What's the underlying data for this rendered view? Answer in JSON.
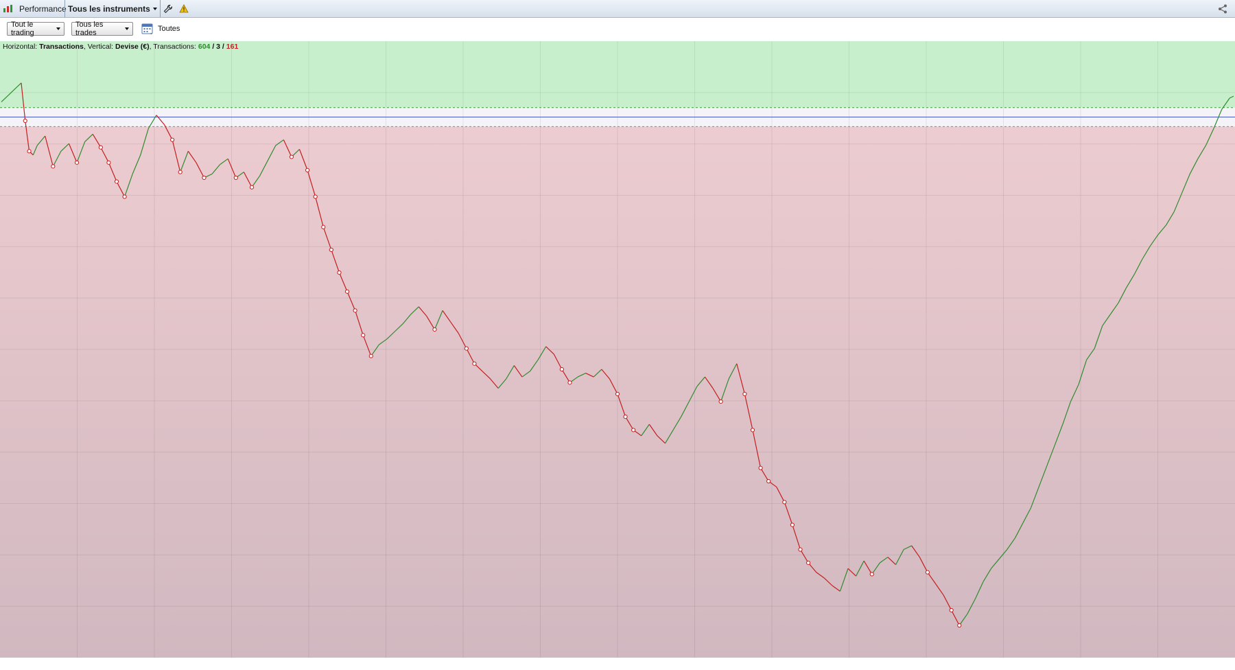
{
  "toolbar": {
    "app_label": "Performance",
    "instrument_label": "Tous les instruments",
    "icons": [
      "chart-logo-icon",
      "wrench-icon",
      "warning-icon",
      "share-icon"
    ]
  },
  "filters": {
    "trading_label": "Tout le trading",
    "trades_label": "Tous les trades",
    "period_label": "Toutes"
  },
  "info": {
    "horizontal_key": "Horizontal:",
    "horizontal_value": "Transactions",
    "vertical_key": "Vertical:",
    "vertical_value": "Devise (€)",
    "transactions_key": "Transactions:",
    "wins": "604",
    "separator": "/",
    "neutral": "3",
    "losses": "161"
  },
  "colors": {
    "profit_zone": "#c8efcc",
    "loss_zone_top": "#ecccd0",
    "loss_zone_bottom": "#d1b8c0",
    "rising_line": "#2e8b2e",
    "falling_line": "#c41e1e",
    "baseline": "#4a57c8"
  },
  "chart_data": {
    "type": "line",
    "x_quantity": "Transactions",
    "y_quantity": "Devise (€)",
    "series": [
      {
        "points": [
          [
            0,
            8
          ],
          [
            3,
            11
          ],
          [
            6,
            14
          ],
          [
            8,
            16
          ],
          [
            10,
            18
          ],
          [
            12,
            -2
          ],
          [
            14,
            -18
          ],
          [
            16,
            -20
          ],
          [
            18,
            -15
          ],
          [
            22,
            -10
          ],
          [
            26,
            -26
          ],
          [
            30,
            -18
          ],
          [
            34,
            -14
          ],
          [
            38,
            -24
          ],
          [
            42,
            -13
          ],
          [
            46,
            -9
          ],
          [
            50,
            -16
          ],
          [
            54,
            -24
          ],
          [
            58,
            -34
          ],
          [
            62,
            -42
          ],
          [
            66,
            -30
          ],
          [
            70,
            -20
          ],
          [
            74,
            -6
          ],
          [
            78,
            1
          ],
          [
            82,
            -4
          ],
          [
            86,
            -12
          ],
          [
            90,
            -29
          ],
          [
            94,
            -18
          ],
          [
            98,
            -24
          ],
          [
            102,
            -32
          ],
          [
            106,
            -30
          ],
          [
            110,
            -25
          ],
          [
            114,
            -22
          ],
          [
            118,
            -32
          ],
          [
            122,
            -29
          ],
          [
            126,
            -37
          ],
          [
            130,
            -31
          ],
          [
            134,
            -23
          ],
          [
            138,
            -15
          ],
          [
            142,
            -12
          ],
          [
            146,
            -21
          ],
          [
            150,
            -17
          ],
          [
            154,
            -28
          ],
          [
            158,
            -42
          ],
          [
            162,
            -58
          ],
          [
            166,
            -70
          ],
          [
            170,
            -82
          ],
          [
            174,
            -92
          ],
          [
            178,
            -102
          ],
          [
            182,
            -115
          ],
          [
            186,
            -126
          ],
          [
            190,
            -120
          ],
          [
            194,
            -117
          ],
          [
            198,
            -113
          ],
          [
            202,
            -109
          ],
          [
            206,
            -104
          ],
          [
            210,
            -100
          ],
          [
            214,
            -105
          ],
          [
            218,
            -112
          ],
          [
            222,
            -102
          ],
          [
            226,
            -108
          ],
          [
            230,
            -114
          ],
          [
            234,
            -122
          ],
          [
            238,
            -130
          ],
          [
            242,
            -134
          ],
          [
            246,
            -138
          ],
          [
            250,
            -143
          ],
          [
            254,
            -138
          ],
          [
            258,
            -131
          ],
          [
            262,
            -137
          ],
          [
            266,
            -134
          ],
          [
            270,
            -128
          ],
          [
            274,
            -121
          ],
          [
            278,
            -125
          ],
          [
            282,
            -133
          ],
          [
            286,
            -140
          ],
          [
            290,
            -137
          ],
          [
            294,
            -135
          ],
          [
            298,
            -137
          ],
          [
            302,
            -133
          ],
          [
            306,
            -138
          ],
          [
            310,
            -146
          ],
          [
            314,
            -158
          ],
          [
            318,
            -165
          ],
          [
            322,
            -168
          ],
          [
            326,
            -162
          ],
          [
            330,
            -168
          ],
          [
            334,
            -172
          ],
          [
            338,
            -165
          ],
          [
            342,
            -158
          ],
          [
            346,
            -150
          ],
          [
            350,
            -142
          ],
          [
            354,
            -137
          ],
          [
            358,
            -143
          ],
          [
            362,
            -150
          ],
          [
            366,
            -138
          ],
          [
            370,
            -130
          ],
          [
            374,
            -146
          ],
          [
            378,
            -165
          ],
          [
            382,
            -185
          ],
          [
            386,
            -192
          ],
          [
            390,
            -195
          ],
          [
            394,
            -203
          ],
          [
            398,
            -215
          ],
          [
            402,
            -228
          ],
          [
            406,
            -235
          ],
          [
            410,
            -240
          ],
          [
            414,
            -243
          ],
          [
            418,
            -247
          ],
          [
            422,
            -250
          ],
          [
            426,
            -238
          ],
          [
            430,
            -242
          ],
          [
            434,
            -234
          ],
          [
            438,
            -241
          ],
          [
            442,
            -235
          ],
          [
            446,
            -232
          ],
          [
            450,
            -236
          ],
          [
            454,
            -228
          ],
          [
            458,
            -226
          ],
          [
            462,
            -232
          ],
          [
            466,
            -240
          ],
          [
            470,
            -246
          ],
          [
            474,
            -252
          ],
          [
            478,
            -260
          ],
          [
            482,
            -268
          ],
          [
            486,
            -262
          ],
          [
            490,
            -254
          ],
          [
            494,
            -245
          ],
          [
            498,
            -238
          ],
          [
            502,
            -233
          ],
          [
            506,
            -228
          ],
          [
            510,
            -222
          ],
          [
            514,
            -214
          ],
          [
            518,
            -206
          ],
          [
            522,
            -195
          ],
          [
            526,
            -184
          ],
          [
            530,
            -173
          ],
          [
            534,
            -162
          ],
          [
            538,
            -150
          ],
          [
            542,
            -141
          ],
          [
            546,
            -128
          ],
          [
            550,
            -122
          ],
          [
            554,
            -110
          ],
          [
            558,
            -104
          ],
          [
            562,
            -98
          ],
          [
            566,
            -90
          ],
          [
            570,
            -83
          ],
          [
            574,
            -75
          ],
          [
            578,
            -68
          ],
          [
            582,
            -62
          ],
          [
            586,
            -57
          ],
          [
            590,
            -50
          ],
          [
            594,
            -40
          ],
          [
            598,
            -30
          ],
          [
            602,
            -22
          ],
          [
            606,
            -15
          ],
          [
            610,
            -6
          ],
          [
            614,
            4
          ],
          [
            618,
            10
          ],
          [
            620,
            11
          ]
        ]
      }
    ],
    "xlim": [
      0,
      620
    ],
    "ylim": [
      -285,
      40
    ],
    "upper_band": 5,
    "lower_band": -5,
    "baseline": 0,
    "grid": true,
    "legend": "none"
  }
}
